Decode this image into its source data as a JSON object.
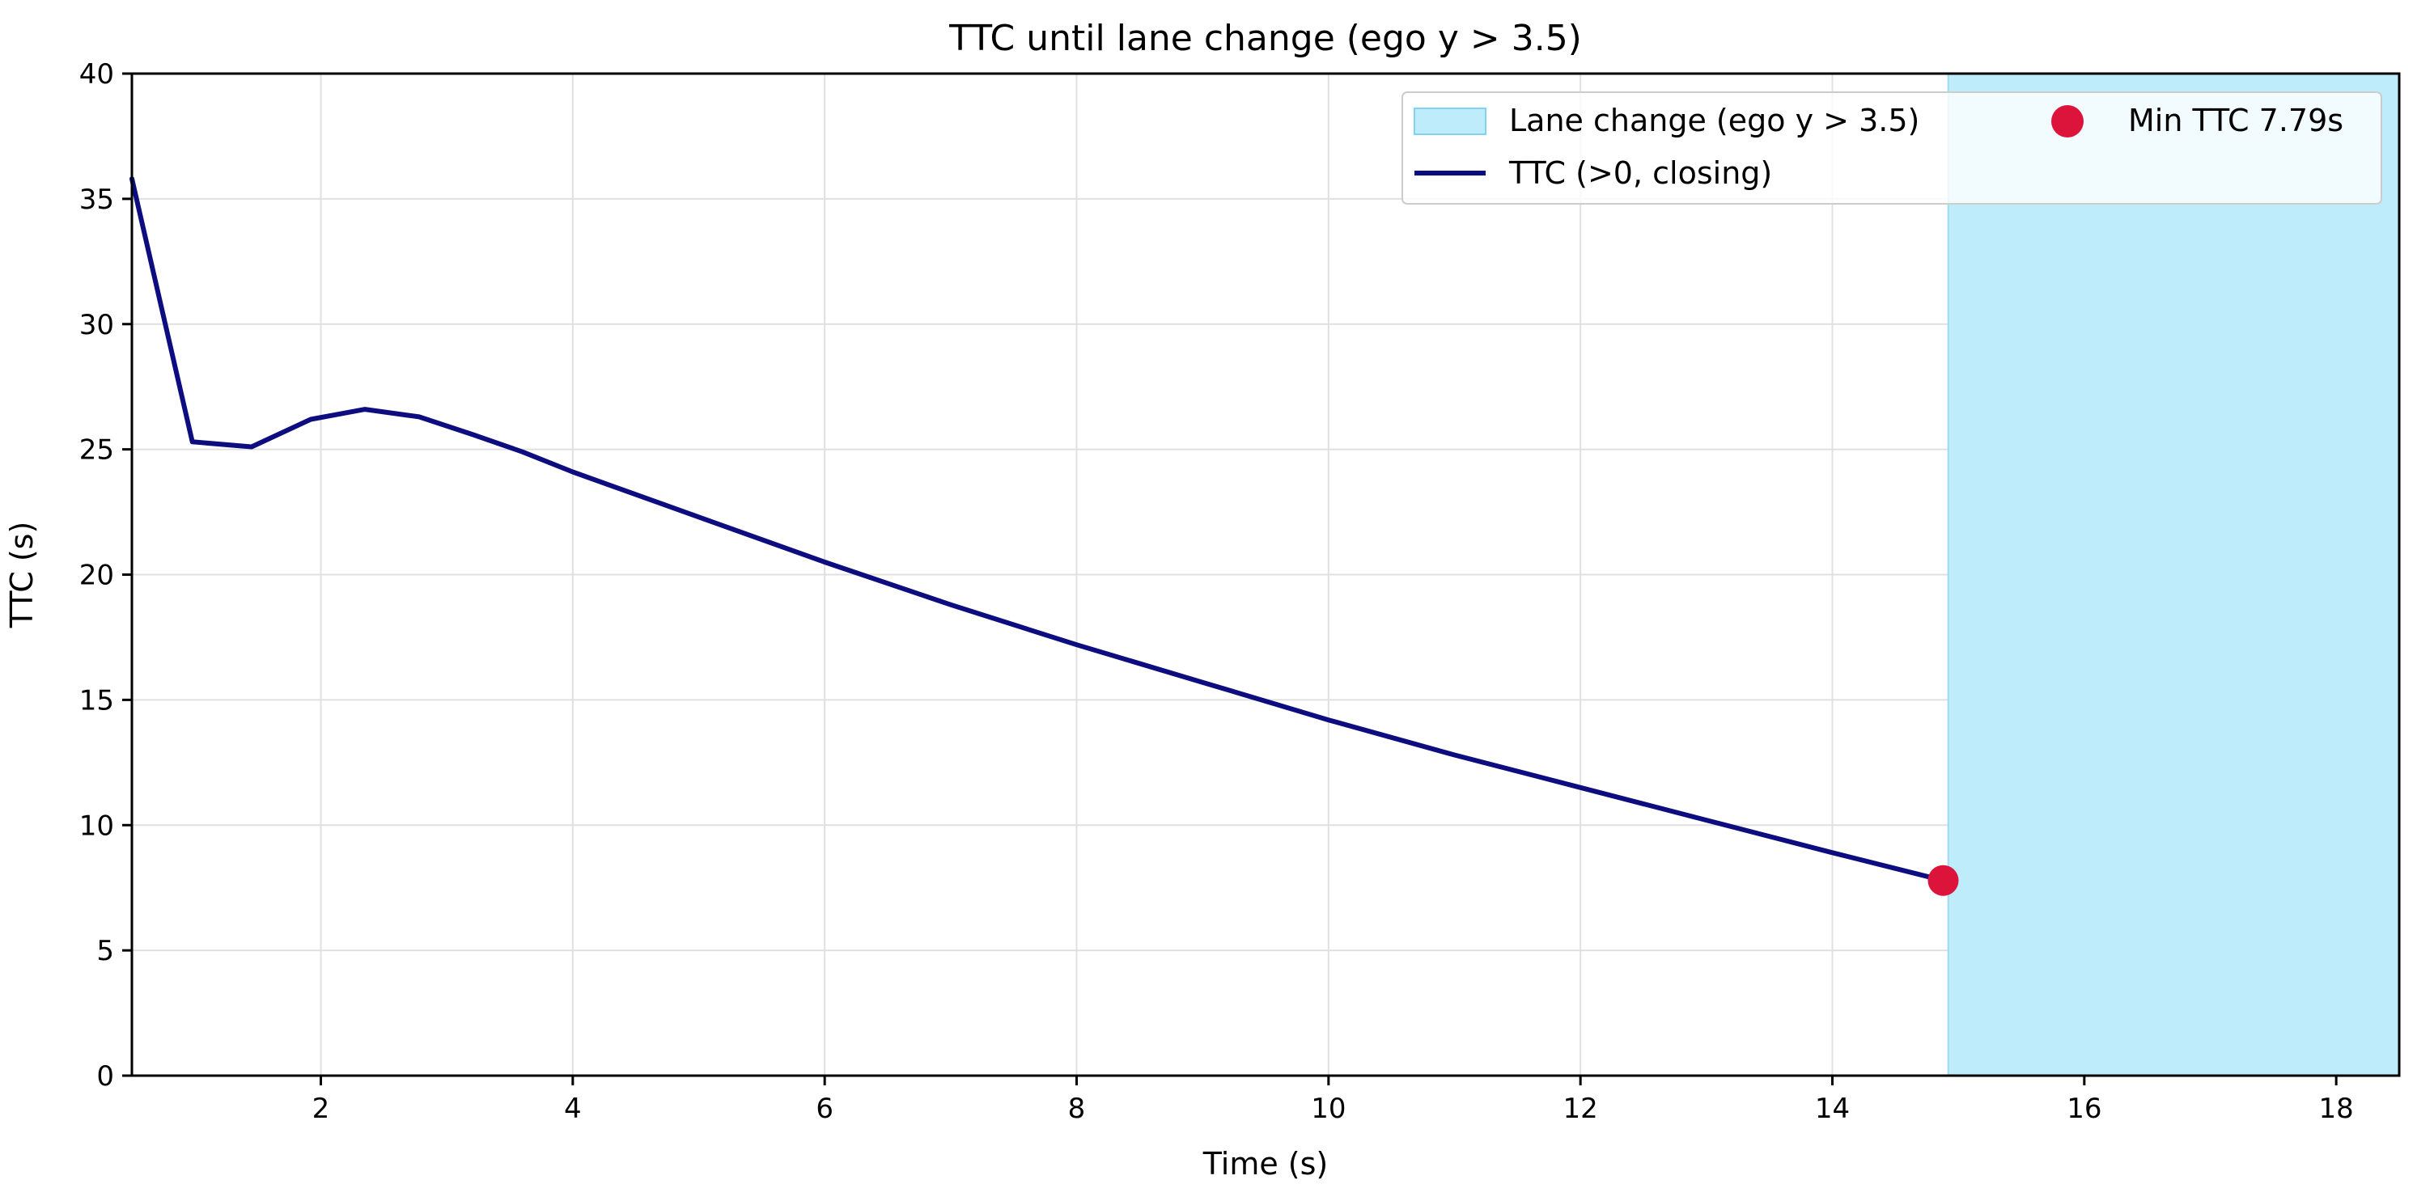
{
  "chart_data": {
    "type": "line",
    "title": "TTC until lane change (ego y > 3.5)",
    "xlabel": "Time (s)",
    "ylabel": "TTC (s)",
    "xlim": [
      0.5,
      18.5
    ],
    "ylim": [
      0,
      40
    ],
    "xticks": [
      2,
      4,
      6,
      8,
      10,
      12,
      14,
      16,
      18
    ],
    "yticks": [
      0,
      5,
      10,
      15,
      20,
      25,
      30,
      35,
      40
    ],
    "grid": true,
    "legend_position": "top-right",
    "series": [
      {
        "name": "TTC (>0, closing)",
        "color": "#0d0d80",
        "x": [
          0.5,
          0.98,
          1.45,
          1.92,
          2.35,
          2.78,
          3.2,
          3.6,
          4.0,
          5.0,
          6.0,
          7.0,
          8.0,
          9.0,
          10.0,
          11.0,
          12.0,
          13.0,
          14.0,
          14.88
        ],
        "y": [
          35.8,
          25.3,
          25.1,
          26.2,
          26.6,
          26.3,
          25.6,
          24.9,
          24.1,
          22.3,
          20.5,
          18.8,
          17.2,
          15.7,
          14.2,
          12.8,
          11.5,
          10.2,
          8.9,
          7.79
        ]
      }
    ],
    "shaded_region": {
      "name": "Lane change (ego y > 3.5)",
      "x_start": 14.92,
      "x_end": 18.5,
      "color": "#bfecfb"
    },
    "marker": {
      "name": "Min TTC 7.79s",
      "x": 14.88,
      "y": 7.79,
      "color": "#dc143c"
    }
  }
}
